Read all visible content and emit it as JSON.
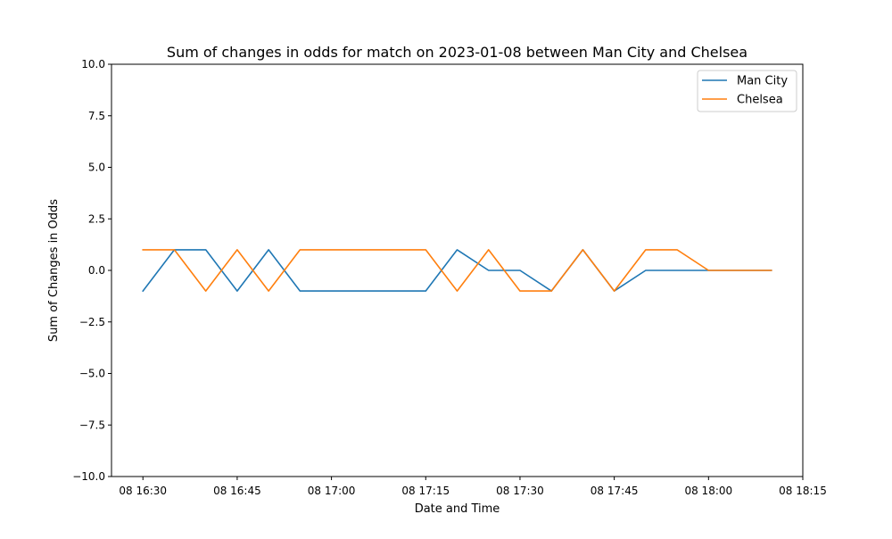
{
  "chart_data": {
    "type": "line",
    "title": "Sum of changes in odds for match on 2023-01-08 between Man City and Chelsea",
    "xlabel": "Date and Time",
    "ylabel": "Sum of Changes in Odds",
    "ylim": [
      -10,
      10
    ],
    "xlim": [
      "08 16:25",
      "08 18:15"
    ],
    "x": [
      "08 16:30",
      "08 16:35",
      "08 16:40",
      "08 16:45",
      "08 16:50",
      "08 16:55",
      "08 17:00",
      "08 17:05",
      "08 17:10",
      "08 17:15",
      "08 17:20",
      "08 17:25",
      "08 17:30",
      "08 17:35",
      "08 17:40",
      "08 17:45",
      "08 17:50",
      "08 17:55",
      "08 18:00",
      "08 18:05",
      "08 18:10"
    ],
    "x_ticks": [
      "08 16:30",
      "08 16:45",
      "08 17:00",
      "08 17:15",
      "08 17:30",
      "08 17:45",
      "08 18:00",
      "08 18:15"
    ],
    "y_ticks": [
      "10.0",
      "7.5",
      "5.0",
      "2.5",
      "0.0",
      "−2.5",
      "−5.0",
      "−7.5",
      "−10.0"
    ],
    "y_tick_values": [
      10,
      7.5,
      5,
      2.5,
      0,
      -2.5,
      -5,
      -7.5,
      -10
    ],
    "series": [
      {
        "name": "Man City",
        "color": "#1f77b4",
        "values": [
          -1,
          1,
          1,
          -1,
          1,
          -1,
          -1,
          -1,
          -1,
          -1,
          1,
          0,
          0,
          -1,
          1,
          -1,
          0,
          0,
          0,
          0,
          0
        ]
      },
      {
        "name": "Chelsea",
        "color": "#ff7f0e",
        "values": [
          1,
          1,
          -1,
          1,
          -1,
          1,
          1,
          1,
          1,
          1,
          -1,
          1,
          -1,
          -1,
          1,
          -1,
          1,
          1,
          0,
          0,
          0
        ]
      }
    ],
    "legend": "top-right",
    "grid": false
  }
}
